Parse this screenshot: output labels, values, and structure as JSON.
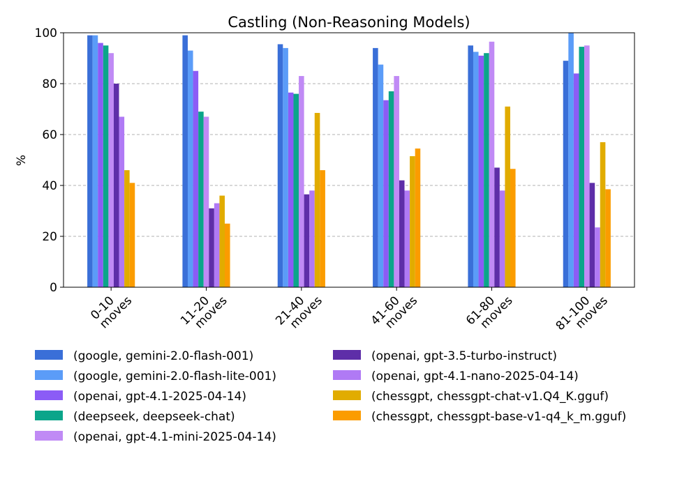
{
  "chart_data": {
    "type": "bar",
    "title": "Castling (Non-Reasoning Models)",
    "xlabel": "",
    "ylabel": "%",
    "ylim": [
      0,
      100
    ],
    "yticks": [
      0,
      20,
      40,
      60,
      80,
      100
    ],
    "grid": "y-dashed",
    "legend_placement": "bottom",
    "categories": [
      [
        "0-10",
        "moves"
      ],
      [
        "11-20",
        "moves"
      ],
      [
        "21-40",
        "moves"
      ],
      [
        "41-60",
        "moves"
      ],
      [
        "61-80",
        "moves"
      ],
      [
        "81-100",
        "moves"
      ]
    ],
    "series": [
      {
        "name": "(google, gemini-2.0-flash-001)",
        "color": "#3a6fd8",
        "values": [
          99,
          99,
          95.5,
          94,
          95,
          89
        ]
      },
      {
        "name": "(google, gemini-2.0-flash-lite-001)",
        "color": "#5b9cf8",
        "values": [
          99,
          93,
          94,
          87.5,
          92.5,
          100
        ]
      },
      {
        "name": "(openai, gpt-4.1-2025-04-14)",
        "color": "#8b5cf6",
        "values": [
          96,
          85,
          76.5,
          73.5,
          91,
          84
        ]
      },
      {
        "name": "(deepseek, deepseek-chat)",
        "color": "#0ba58a",
        "values": [
          95,
          69,
          76,
          77,
          92,
          94.5
        ]
      },
      {
        "name": "(openai, gpt-4.1-mini-2025-04-14)",
        "color": "#c08af5",
        "values": [
          92,
          67,
          83,
          83,
          96.5,
          95
        ]
      },
      {
        "name": "(openai, gpt-3.5-turbo-instruct)",
        "color": "#5e2ea8",
        "values": [
          80,
          31,
          36.5,
          42,
          47,
          41
        ]
      },
      {
        "name": "(openai, gpt-4.1-nano-2025-04-14)",
        "color": "#b07af5",
        "values": [
          67,
          33,
          38,
          38,
          38,
          23.5
        ]
      },
      {
        "name": "(chessgpt, chessgpt-chat-v1.Q4_K.gguf)",
        "color": "#e1ac00",
        "values": [
          46,
          36,
          68.5,
          51.5,
          71,
          57
        ]
      },
      {
        "name": "(chessgpt, chessgpt-base-v1-q4_k_m.gguf)",
        "color": "#fb9c00",
        "values": [
          41,
          25,
          46,
          54.5,
          46.5,
          38.5
        ]
      }
    ]
  }
}
